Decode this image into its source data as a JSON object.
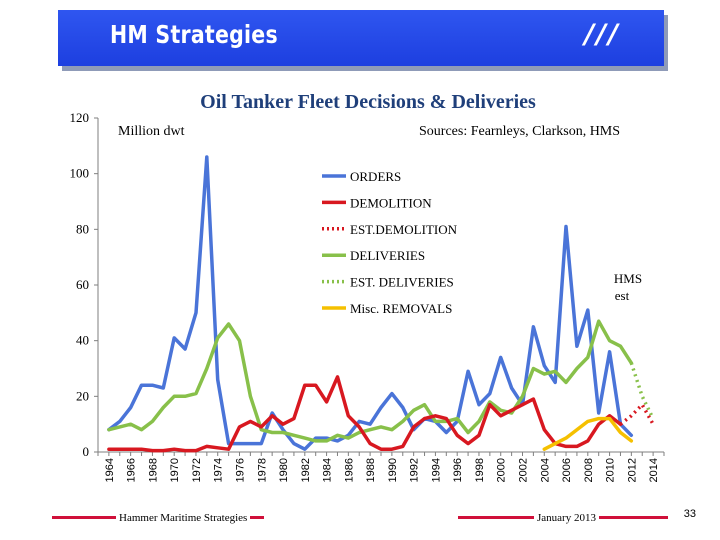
{
  "header": {
    "title": "HM Strategies",
    "logo_text": "///",
    "banner_color": "#1d3fe0"
  },
  "footer": {
    "left_text": "Hammer Maritime Strategies",
    "right_text": "January 2013",
    "page_number": "33",
    "line_color": "#d0103a"
  },
  "chart_data": {
    "type": "line",
    "title": "Oil Tanker Fleet Decisions & Deliveries",
    "ylabel": "Million dwt",
    "source_note": "Sources: Fearnleys, Clarkson, HMS",
    "annotation": "HMS est",
    "xlim": [
      1963,
      2015
    ],
    "ylim": [
      0,
      120
    ],
    "yticks": [
      0,
      20,
      40,
      60,
      80,
      100,
      120
    ],
    "xticks": [
      1964,
      1966,
      1968,
      1970,
      1972,
      1974,
      1976,
      1978,
      1980,
      1982,
      1984,
      1986,
      1988,
      1990,
      1992,
      1994,
      1996,
      1998,
      2000,
      2002,
      2004,
      2006,
      2008,
      2010,
      2012,
      2014
    ],
    "grid": false,
    "legend_position": "center",
    "series": [
      {
        "name": "ORDERS",
        "color": "#4a74d8",
        "style": "solid",
        "x": [
          1964,
          1965,
          1966,
          1967,
          1968,
          1969,
          1970,
          1971,
          1972,
          1973,
          1974,
          1975,
          1976,
          1977,
          1978,
          1979,
          1980,
          1981,
          1982,
          1983,
          1984,
          1985,
          1986,
          1987,
          1988,
          1989,
          1990,
          1991,
          1992,
          1993,
          1994,
          1995,
          1996,
          1997,
          1998,
          1999,
          2000,
          2001,
          2002,
          2003,
          2004,
          2005,
          2006,
          2007,
          2008,
          2009,
          2010,
          2011,
          2012
        ],
        "values": [
          8,
          11,
          16,
          24,
          24,
          23,
          41,
          37,
          50,
          106,
          26,
          3,
          3,
          3,
          3,
          14,
          8,
          3,
          1,
          5,
          5,
          4,
          6,
          11,
          10,
          16,
          21,
          16,
          8,
          12,
          11,
          7,
          11,
          29,
          17,
          21,
          34,
          23,
          17,
          45,
          31,
          25,
          81,
          38,
          51,
          14,
          36,
          10,
          6
        ]
      },
      {
        "name": "DEMOLITION",
        "color": "#d81820",
        "style": "solid",
        "x": [
          1964,
          1965,
          1966,
          1967,
          1968,
          1969,
          1970,
          1971,
          1972,
          1973,
          1974,
          1975,
          1976,
          1977,
          1978,
          1979,
          1980,
          1981,
          1982,
          1983,
          1984,
          1985,
          1986,
          1987,
          1988,
          1989,
          1990,
          1991,
          1992,
          1993,
          1994,
          1995,
          1996,
          1997,
          1998,
          1999,
          2000,
          2001,
          2002,
          2003,
          2004,
          2005,
          2006,
          2007,
          2008,
          2009,
          2010,
          2011
        ],
        "values": [
          1,
          1,
          1,
          1,
          0.5,
          0.5,
          1,
          0.5,
          0.5,
          2,
          1.5,
          1,
          9,
          11,
          9,
          13,
          10,
          12,
          24,
          24,
          18,
          27,
          13,
          9,
          3,
          1,
          1,
          2,
          9,
          12,
          13,
          12,
          6,
          3,
          6,
          17,
          13,
          15,
          17,
          19,
          8,
          3,
          2,
          2,
          4,
          10,
          13,
          10
        ]
      },
      {
        "name": "EST.DEMOLITION",
        "color": "#d81820",
        "style": "dotted",
        "x": [
          2011,
          2012,
          2013,
          2014
        ],
        "values": [
          10,
          13,
          17,
          10
        ]
      },
      {
        "name": "DELIVERIES",
        "color": "#88c04a",
        "style": "solid",
        "x": [
          1964,
          1965,
          1966,
          1967,
          1968,
          1969,
          1970,
          1971,
          1972,
          1973,
          1974,
          1975,
          1976,
          1977,
          1978,
          1979,
          1980,
          1981,
          1982,
          1983,
          1984,
          1985,
          1986,
          1987,
          1988,
          1989,
          1990,
          1991,
          1992,
          1993,
          1994,
          1995,
          1996,
          1997,
          1998,
          1999,
          2000,
          2001,
          2002,
          2003,
          2004,
          2005,
          2006,
          2007,
          2008,
          2009,
          2010,
          2011,
          2012
        ],
        "values": [
          8,
          9,
          10,
          8,
          11,
          16,
          20,
          20,
          21,
          30,
          41,
          46,
          40,
          20,
          8,
          7,
          7,
          6,
          5,
          4,
          4,
          6,
          5,
          7,
          8,
          9,
          8,
          11,
          15,
          17,
          11,
          11,
          12,
          7,
          11,
          18,
          15,
          14,
          20,
          30,
          28,
          29,
          25,
          30,
          34,
          47,
          40,
          38,
          32
        ]
      },
      {
        "name": "EST. DELIVERIES",
        "color": "#88c04a",
        "style": "dotted",
        "x": [
          2012,
          2013,
          2014
        ],
        "values": [
          32,
          20,
          12
        ]
      },
      {
        "name": "Misc. REMOVALS",
        "color": "#f5c000",
        "style": "solid",
        "x": [
          2004,
          2005,
          2006,
          2007,
          2008,
          2009,
          2010,
          2011,
          2012
        ],
        "values": [
          1,
          3,
          5,
          8,
          11,
          12,
          12,
          7,
          4
        ]
      }
    ]
  }
}
